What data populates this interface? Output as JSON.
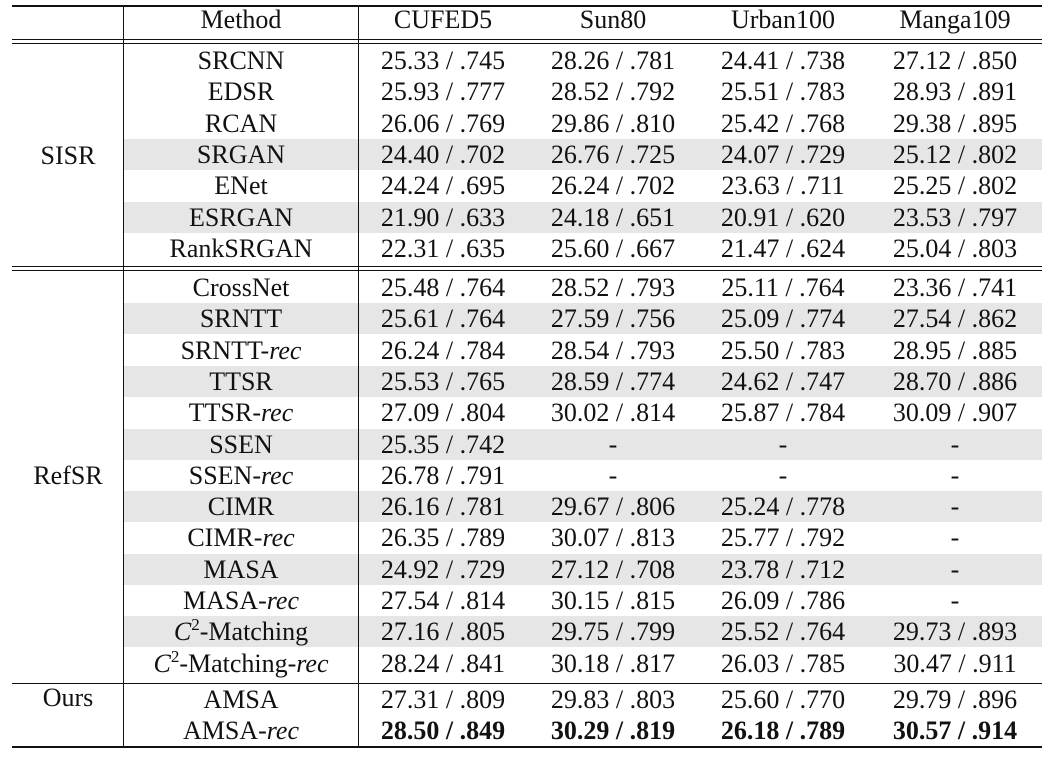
{
  "header": {
    "group": "",
    "method": "Method",
    "datasets": [
      "CUFED5",
      "Sun80",
      "Urban100",
      "Manga109"
    ]
  },
  "groups": [
    {
      "label": "SISR",
      "rows": [
        {
          "method": "SRCNN",
          "suffix": "",
          "values": [
            "25.33 / .745",
            "28.26 / .781",
            "24.41 / .738",
            "27.12 / .850"
          ],
          "shaded": false,
          "bold": false
        },
        {
          "method": "EDSR",
          "suffix": "",
          "values": [
            "25.93 / .777",
            "28.52 / .792",
            "25.51 / .783",
            "28.93 / .891"
          ],
          "shaded": false,
          "bold": false
        },
        {
          "method": "RCAN",
          "suffix": "",
          "values": [
            "26.06 / .769",
            "29.86 / .810",
            "25.42 / .768",
            "29.38 / .895"
          ],
          "shaded": false,
          "bold": false
        },
        {
          "method": "SRGAN",
          "suffix": "",
          "values": [
            "24.40 / .702",
            "26.76 / .725",
            "24.07 / .729",
            "25.12 / .802"
          ],
          "shaded": true,
          "bold": false
        },
        {
          "method": "ENet",
          "suffix": "",
          "values": [
            "24.24 / .695",
            "26.24 / .702",
            "23.63 / .711",
            "25.25 / .802"
          ],
          "shaded": false,
          "bold": false
        },
        {
          "method": "ESRGAN",
          "suffix": "",
          "values": [
            "21.90 / .633",
            "24.18 / .651",
            "20.91 / .620",
            "23.53 / .797"
          ],
          "shaded": true,
          "bold": false
        },
        {
          "method": "RankSRGAN",
          "suffix": "",
          "values": [
            "22.31 / .635",
            "25.60 / .667",
            "21.47 / .624",
            "25.04 / .803"
          ],
          "shaded": false,
          "bold": false
        }
      ]
    },
    {
      "label": "RefSR",
      "rows": [
        {
          "method": "CrossNet",
          "suffix": "",
          "values": [
            "25.48 / .764",
            "28.52 / .793",
            "25.11 / .764",
            "23.36 / .741"
          ],
          "shaded": false,
          "bold": false
        },
        {
          "method": "SRNTT",
          "suffix": "",
          "values": [
            "25.61 / .764",
            "27.59 / .756",
            "25.09 / .774",
            "27.54 / .862"
          ],
          "shaded": true,
          "bold": false
        },
        {
          "method": "SRNTT-",
          "suffix": "rec",
          "values": [
            "26.24 / .784",
            "28.54 / .793",
            "25.50 / .783",
            "28.95 / .885"
          ],
          "shaded": false,
          "bold": false
        },
        {
          "method": "TTSR",
          "suffix": "",
          "values": [
            "25.53 / .765",
            "28.59 / .774",
            "24.62 / .747",
            "28.70 / .886"
          ],
          "shaded": true,
          "bold": false
        },
        {
          "method": "TTSR-",
          "suffix": "rec",
          "values": [
            "27.09 / .804",
            "30.02 / .814",
            "25.87 / .784",
            "30.09 / .907"
          ],
          "shaded": false,
          "bold": false
        },
        {
          "method": "SSEN",
          "suffix": "",
          "values": [
            "25.35 / .742",
            "-",
            "-",
            "-"
          ],
          "shaded": true,
          "bold": false
        },
        {
          "method": "SSEN-",
          "suffix": "rec",
          "values": [
            "26.78 / .791",
            "-",
            "-",
            "-"
          ],
          "shaded": false,
          "bold": false
        },
        {
          "method": "CIMR",
          "suffix": "",
          "values": [
            "26.16 / .781",
            "29.67 / .806",
            "25.24 / .778",
            "-"
          ],
          "shaded": true,
          "bold": false
        },
        {
          "method": "CIMR-",
          "suffix": "rec",
          "values": [
            "26.35 / .789",
            "30.07 / .813",
            "25.77 / .792",
            "-"
          ],
          "shaded": false,
          "bold": false
        },
        {
          "method": "MASA",
          "suffix": "",
          "values": [
            "24.92 / .729",
            "27.12 / .708",
            "23.78 / .712",
            "-"
          ],
          "shaded": true,
          "bold": false
        },
        {
          "method": "MASA-",
          "suffix": "rec",
          "values": [
            "27.54 / .814",
            "30.15 / .815",
            "26.09 / .786",
            "-"
          ],
          "shaded": false,
          "bold": false
        },
        {
          "method": "-Matching",
          "suffix": "",
          "mathC": "C",
          "sup": "2",
          "values": [
            "27.16 / .805",
            "29.75 / .799",
            "25.52 / .764",
            "29.73 / .893"
          ],
          "shaded": true,
          "bold": false
        },
        {
          "method": "-Matching-",
          "suffix": "rec",
          "mathC": "C",
          "sup": "2",
          "values": [
            "28.24 / .841",
            "30.18 / .817",
            "26.03 / .785",
            "30.47 / .911"
          ],
          "shaded": false,
          "bold": false
        }
      ]
    },
    {
      "label": "Ours",
      "rows": [
        {
          "method": "AMSA",
          "suffix": "",
          "values": [
            "27.31 / .809",
            "29.83 / .803",
            "25.60 / .770",
            "29.79 / .896"
          ],
          "shaded": false,
          "bold": false
        },
        {
          "method": "AMSA-",
          "suffix": "rec",
          "values": [
            "28.50 / .849",
            "30.29 / .819",
            "26.18 / .789",
            "30.57 / .914"
          ],
          "shaded": false,
          "bold": true
        }
      ]
    }
  ],
  "colors": {
    "shade": "#e6e6e6",
    "rule": "#111111",
    "text": "#111111"
  }
}
